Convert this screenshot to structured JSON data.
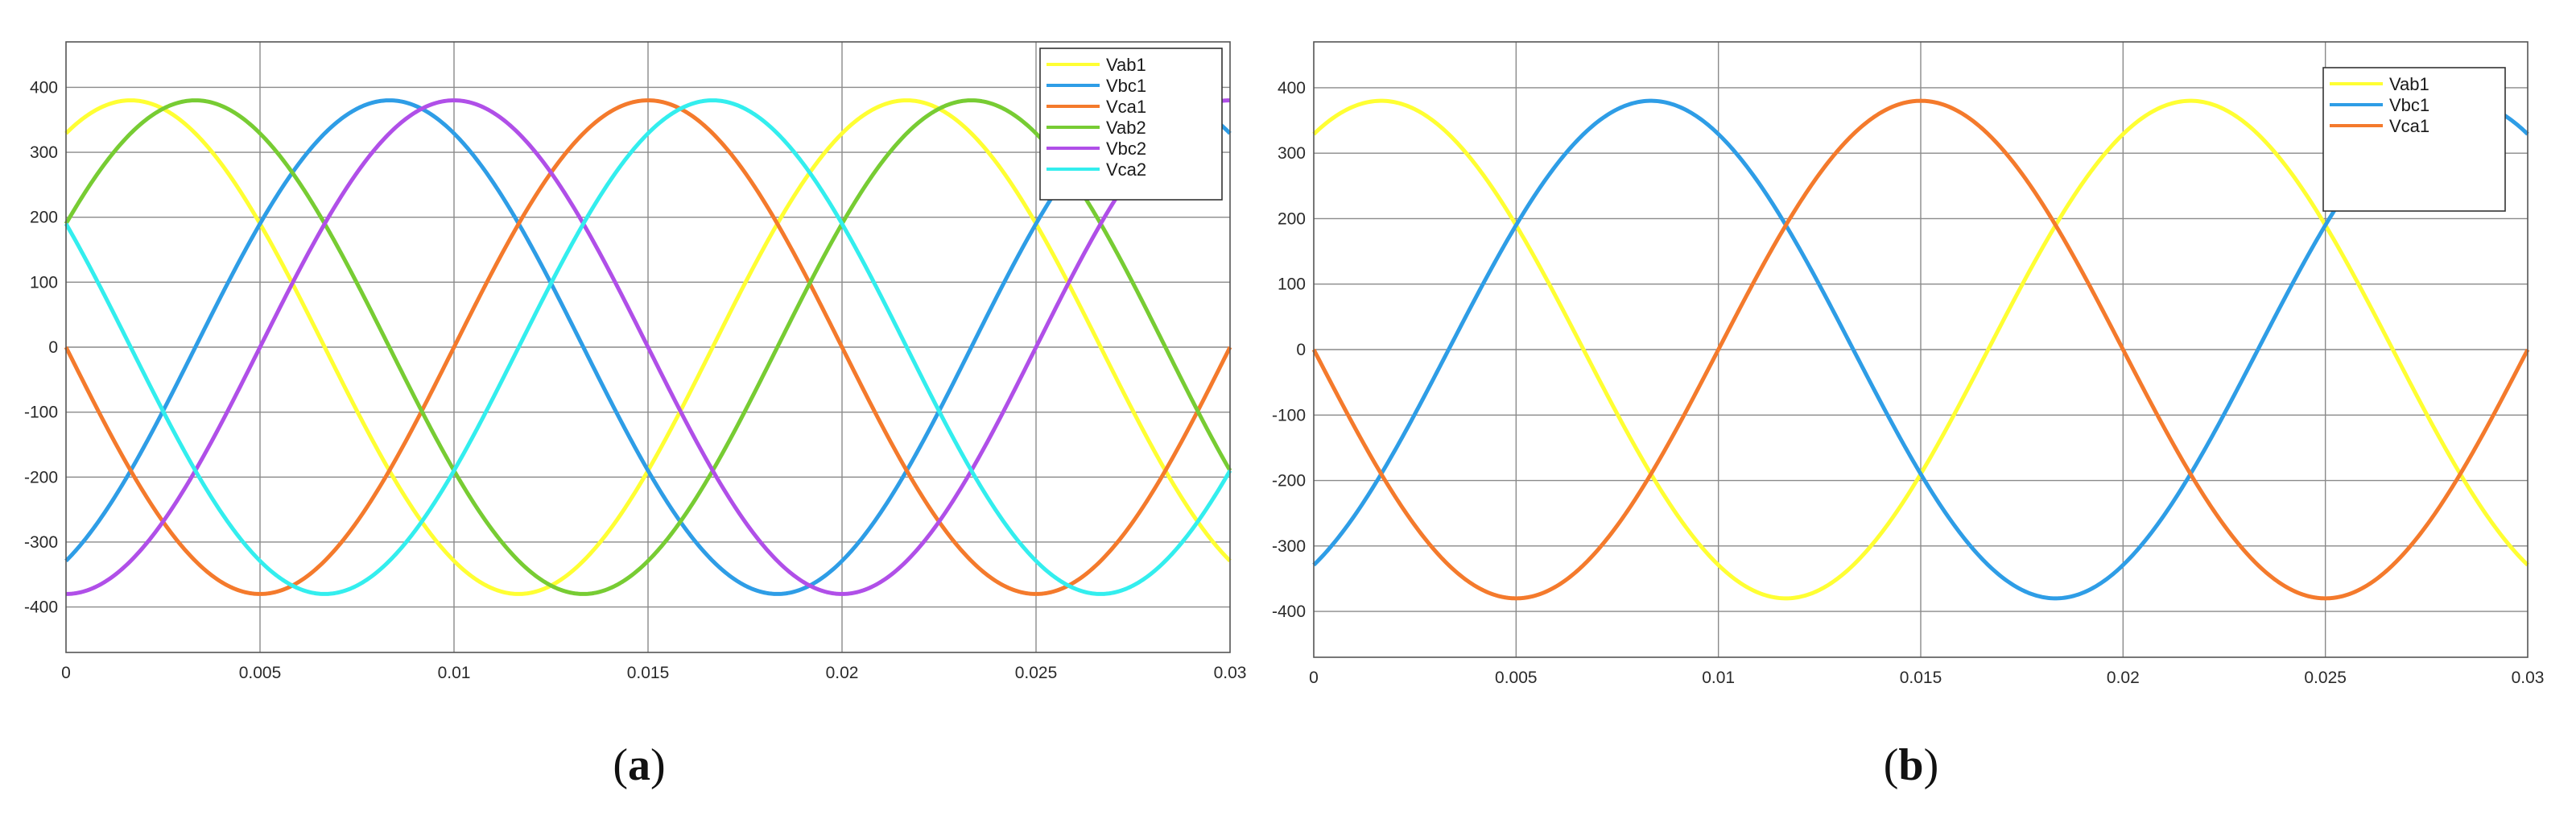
{
  "colors": {
    "Vab1": "#ffff33",
    "Vbc1": "#2e9de6",
    "Vca1": "#f47a2c",
    "Vab2": "#77cc33",
    "Vbc2": "#b04fe8",
    "Vca2": "#33eeee"
  },
  "chart_data": [
    {
      "type": "line",
      "panel_label": "(a)",
      "caption": {
        "open": "(",
        "letter": "a",
        "close": ")"
      },
      "xlim": [
        0,
        0.03
      ],
      "ylim": [
        -470,
        470
      ],
      "x_ticks": [
        0,
        0.005,
        0.01,
        0.015,
        0.02,
        0.025,
        0.03
      ],
      "x_tick_labels": [
        "0",
        "0.005",
        "0.01",
        "0.015",
        "0.02",
        "0.025",
        "0.03"
      ],
      "y_ticks": [
        -400,
        -300,
        -200,
        -100,
        0,
        100,
        200,
        300,
        400
      ],
      "y_tick_labels": [
        "-400",
        "-300",
        "-200",
        "-100",
        "0",
        "100",
        "200",
        "300",
        "400"
      ],
      "grid": true,
      "legend_position": "top-right",
      "waveform": {
        "amplitude": 380,
        "frequency_hz": 50
      },
      "series": [
        {
          "name": "Vab1",
          "amplitude": 380,
          "phase_deg": 60
        },
        {
          "name": "Vbc1",
          "amplitude": 380,
          "phase_deg": -60
        },
        {
          "name": "Vca1",
          "amplitude": 380,
          "phase_deg": 180
        },
        {
          "name": "Vab2",
          "amplitude": 380,
          "phase_deg": 30
        },
        {
          "name": "Vbc2",
          "amplitude": 380,
          "phase_deg": -90
        },
        {
          "name": "Vca2",
          "amplitude": 380,
          "phase_deg": 150
        }
      ]
    },
    {
      "type": "line",
      "panel_label": "(b)",
      "caption": {
        "open": "(",
        "letter": "b",
        "close": ")"
      },
      "xlim": [
        0,
        0.03
      ],
      "ylim": [
        -470,
        470
      ],
      "x_ticks": [
        0,
        0.005,
        0.01,
        0.015,
        0.02,
        0.025,
        0.03
      ],
      "x_tick_labels": [
        "0",
        "0.005",
        "0.01",
        "0.015",
        "0.02",
        "0.025",
        "0.03"
      ],
      "y_ticks": [
        -400,
        -300,
        -200,
        -100,
        0,
        100,
        200,
        300,
        400
      ],
      "y_tick_labels": [
        "-400",
        "-300",
        "-200",
        "-100",
        "0",
        "100",
        "200",
        "300",
        "400"
      ],
      "grid": true,
      "legend_position": "top-right",
      "waveform": {
        "amplitude": 380,
        "frequency_hz": 50
      },
      "series": [
        {
          "name": "Vab1",
          "amplitude": 380,
          "phase_deg": 60
        },
        {
          "name": "Vbc1",
          "amplitude": 380,
          "phase_deg": -60
        },
        {
          "name": "Vca1",
          "amplitude": 380,
          "phase_deg": 180
        }
      ]
    }
  ]
}
